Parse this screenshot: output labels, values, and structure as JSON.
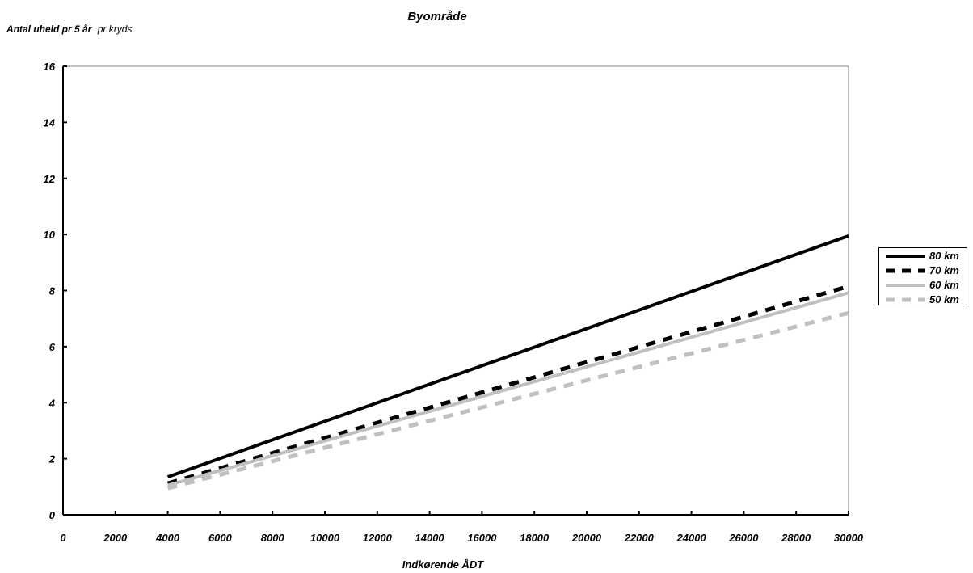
{
  "chart_data": {
    "type": "line",
    "title": "Byområde",
    "ylabel_bold": "Antal uheld pr 5 år",
    "ylabel_normal": "pr kryds",
    "xlabel": "Indkørende ÅDT",
    "xlim": [
      0,
      30000
    ],
    "ylim": [
      0,
      16
    ],
    "xticks": [
      0,
      2000,
      4000,
      6000,
      8000,
      10000,
      12000,
      14000,
      16000,
      18000,
      20000,
      22000,
      24000,
      26000,
      28000,
      30000
    ],
    "yticks": [
      0,
      2,
      4,
      6,
      8,
      10,
      12,
      14,
      16
    ],
    "grid": false,
    "legend_position": "right",
    "series": [
      {
        "name": "80 km",
        "color": "#000000",
        "style": "solid",
        "x": [
          4000,
          30000
        ],
        "y": [
          1.35,
          9.95
        ]
      },
      {
        "name": "70 km",
        "color": "#000000",
        "style": "dashed",
        "x": [
          4000,
          30000
        ],
        "y": [
          1.12,
          8.15
        ]
      },
      {
        "name": "60 km",
        "color": "#c0c0c0",
        "style": "solid",
        "x": [
          4000,
          30000
        ],
        "y": [
          1.05,
          7.92
        ]
      },
      {
        "name": "50 km",
        "color": "#c0c0c0",
        "style": "dashed",
        "x": [
          4000,
          30000
        ],
        "y": [
          0.95,
          7.2
        ]
      }
    ]
  }
}
